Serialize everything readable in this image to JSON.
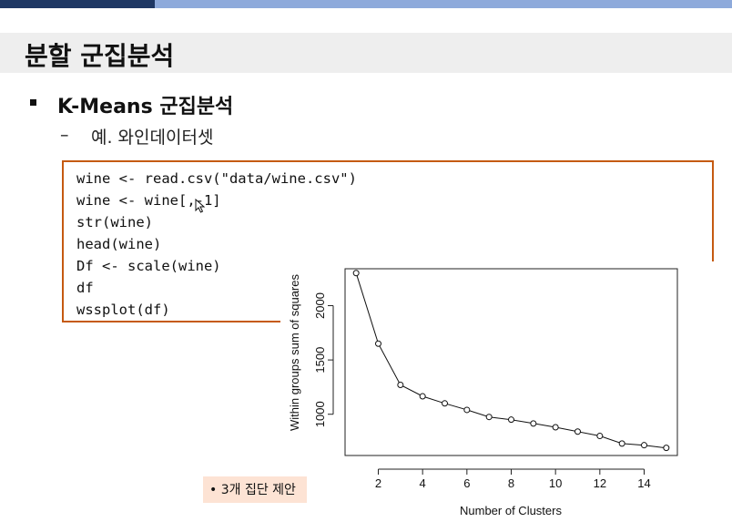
{
  "slide": {
    "title": "분할 군집분석",
    "bullet": "K-Means 군집분석",
    "sub_dash": "–",
    "sub_item": "예. 와인데이터셋",
    "code_lines": [
      "wine <- read.csv(\"data/wine.csv\")",
      "wine <- wine[,-1]",
      "str(wine)",
      "head(wine)",
      "Df <- scale(wine)",
      "df",
      "wssplot(df)"
    ],
    "tag": "• 3개 집단 제안"
  },
  "colors": {
    "top_dark": "#1f3864",
    "top_light": "#8eaadb",
    "code_border": "#c55a11",
    "tag_bg": "#fde3d4"
  },
  "chart_data": {
    "type": "line",
    "title": "",
    "xlabel": "Number of Clusters",
    "ylabel": "Within groups sum of squares",
    "x": [
      1,
      2,
      3,
      4,
      5,
      6,
      7,
      8,
      9,
      10,
      11,
      12,
      13,
      14,
      15
    ],
    "y": [
      2300,
      1650,
      1270,
      1165,
      1100,
      1040,
      975,
      950,
      915,
      880,
      840,
      800,
      730,
      715,
      690
    ],
    "xticks": [
      2,
      4,
      6,
      8,
      10,
      12,
      14
    ],
    "yticks": [
      1000,
      1500,
      2000
    ],
    "xlim": [
      0.5,
      15.5
    ],
    "ylim": [
      620,
      2340
    ],
    "marker": "open-circle",
    "line_style": "solid",
    "grid": false,
    "legend": "none"
  }
}
